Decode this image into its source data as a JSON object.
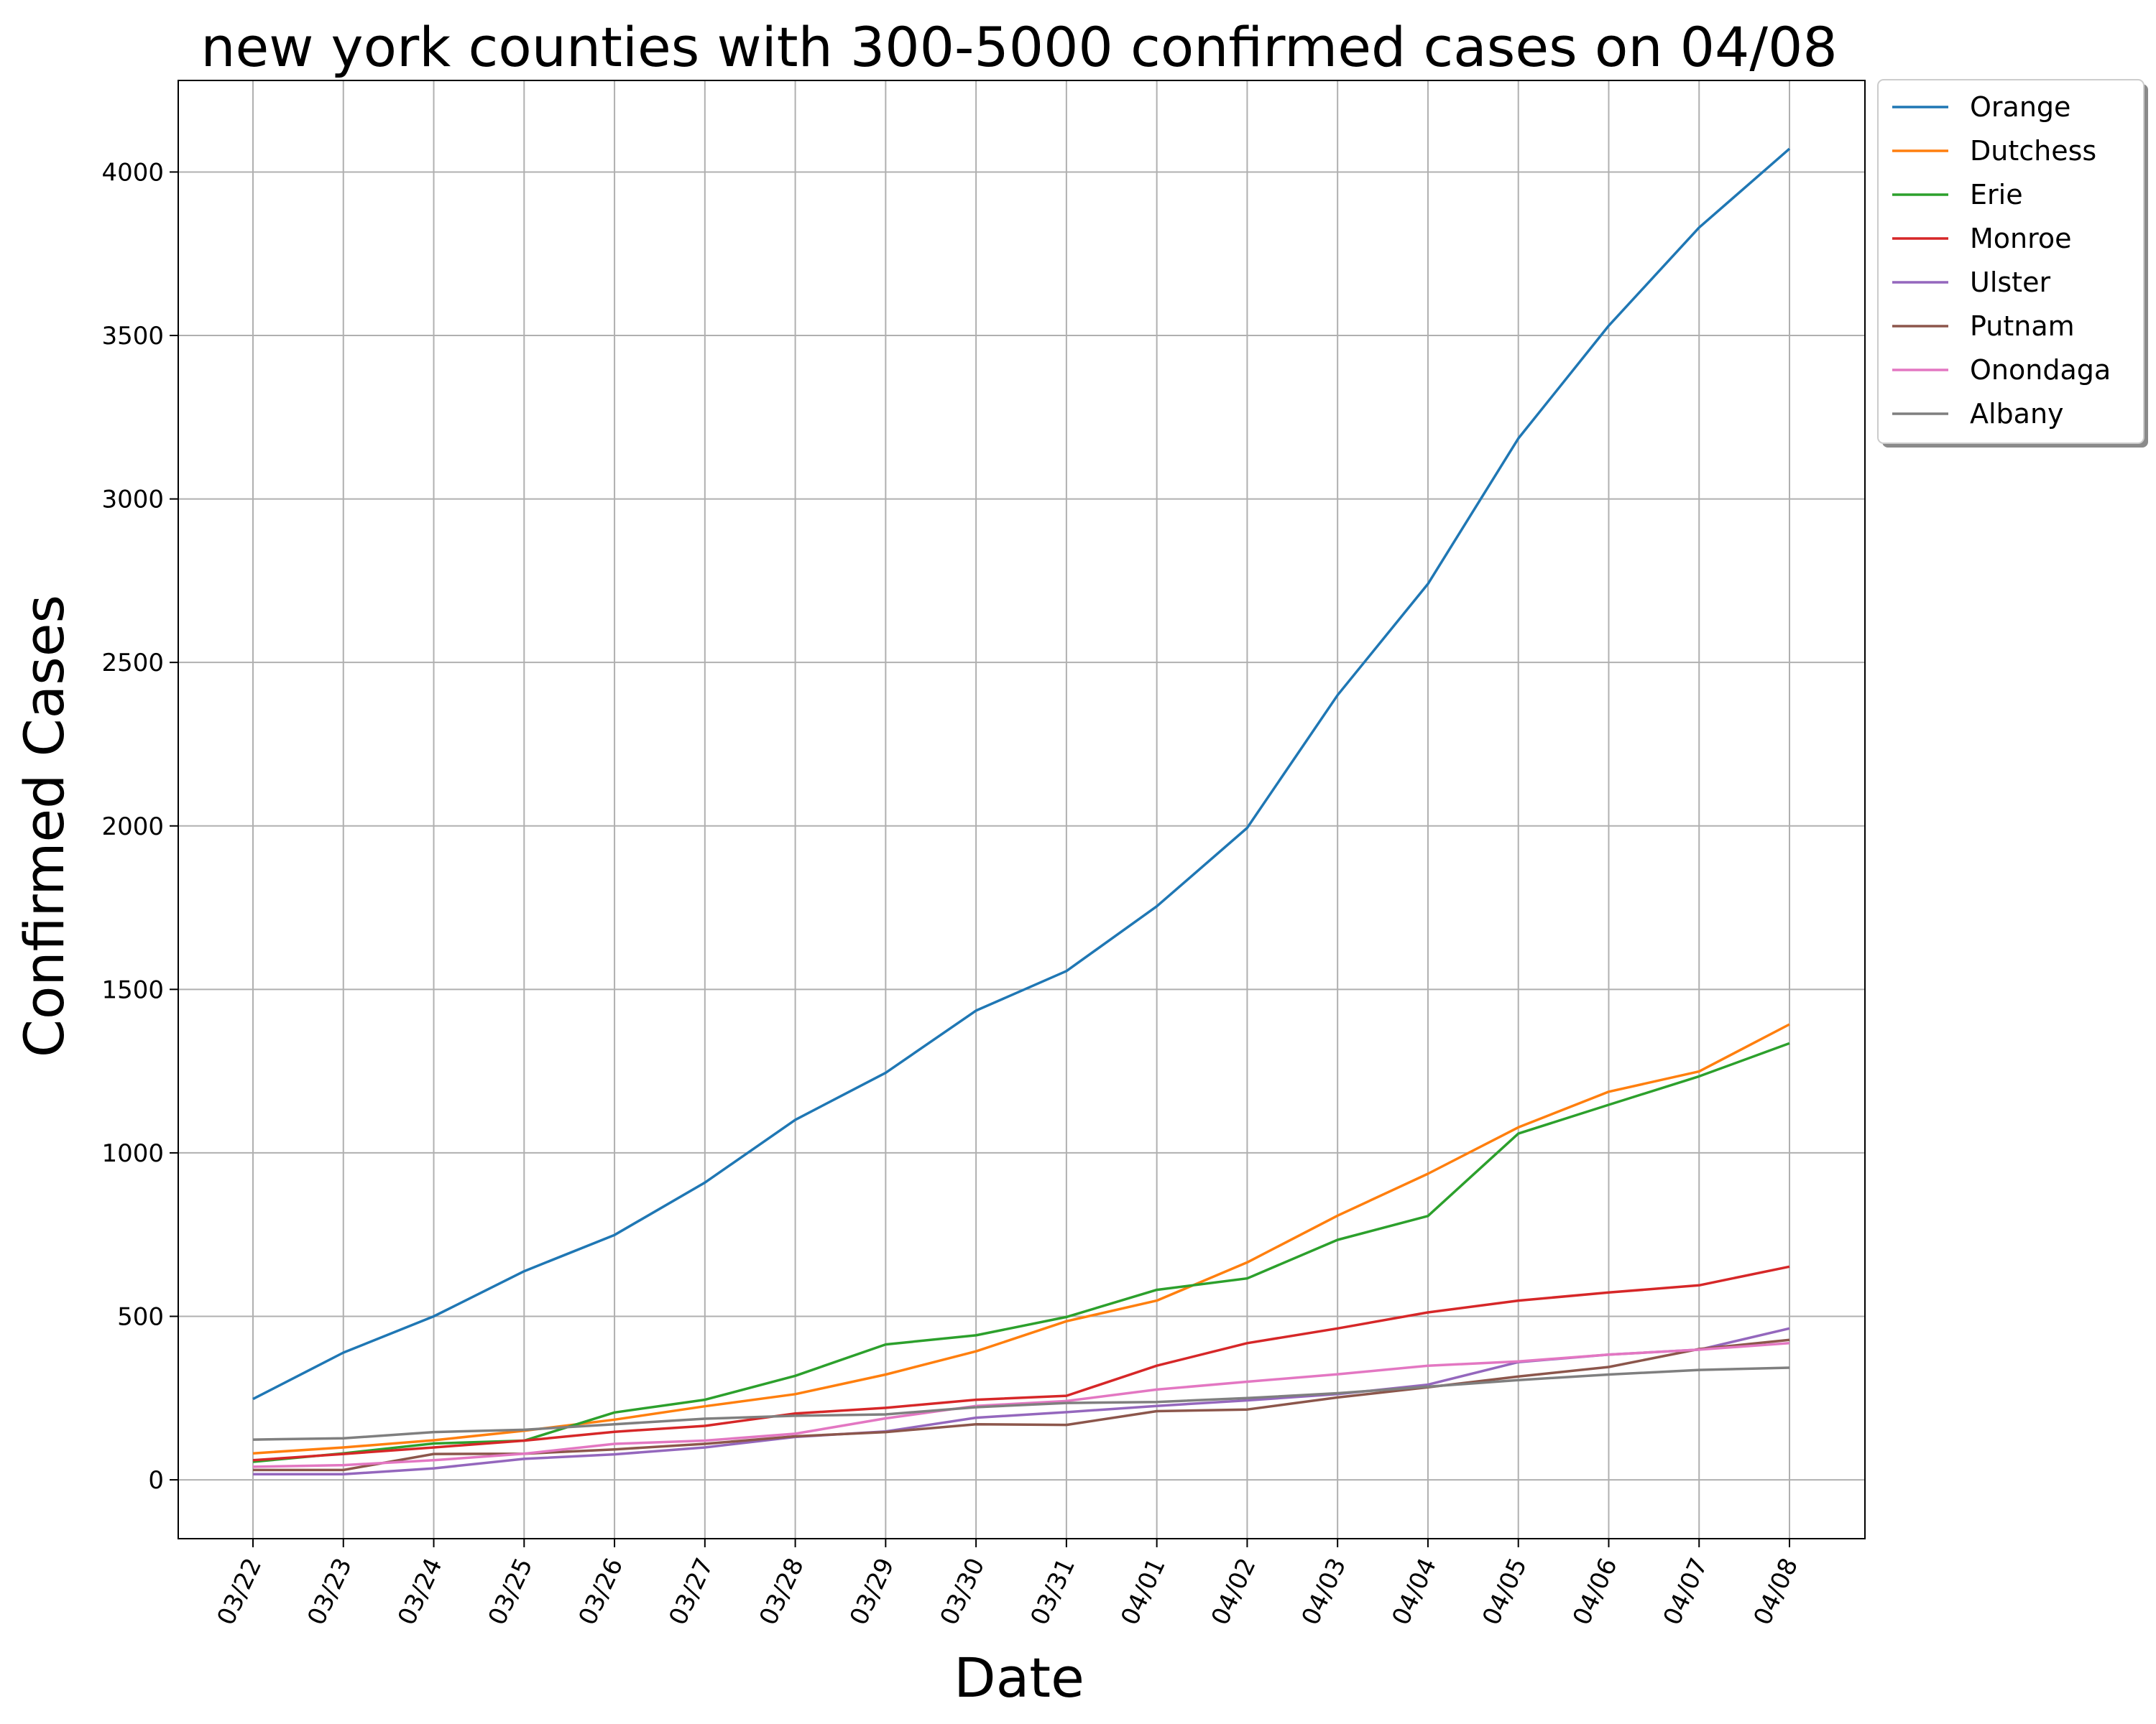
{
  "chart_data": {
    "type": "line",
    "title": "new york counties with 300-5000 confirmed cases on 04/08",
    "xlabel": "Date",
    "ylabel": "Confirmed Cases",
    "categories": [
      "03/22",
      "03/23",
      "03/24",
      "03/25",
      "03/26",
      "03/27",
      "03/28",
      "03/29",
      "03/30",
      "03/31",
      "04/01",
      "04/02",
      "04/03",
      "04/04",
      "04/05",
      "04/06",
      "04/07",
      "04/08"
    ],
    "ylim": [
      -180,
      4280
    ],
    "yticks": [
      0,
      500,
      1000,
      1500,
      2000,
      2500,
      3000,
      3500,
      4000
    ],
    "grid": true,
    "legend_position": "outside-top-right",
    "series": [
      {
        "name": "Orange",
        "color": "#1f77b4",
        "values": [
          247,
          389,
          500,
          638,
          749,
          909,
          1101,
          1245,
          1435,
          1556,
          1754,
          1994,
          2400,
          2740,
          3185,
          3530,
          3830,
          4071
        ]
      },
      {
        "name": "Dutchess",
        "color": "#ff7f0e",
        "values": [
          81,
          99,
          121,
          150,
          184,
          225,
          262,
          322,
          393,
          485,
          548,
          665,
          808,
          936,
          1078,
          1187,
          1249,
          1393
        ]
      },
      {
        "name": "Erie",
        "color": "#2ca02c",
        "values": [
          55,
          81,
          111,
          120,
          206,
          245,
          318,
          414,
          442,
          498,
          581,
          616,
          734,
          807,
          1059,
          1147,
          1234,
          1335
        ]
      },
      {
        "name": "Monroe",
        "color": "#d62728",
        "values": [
          60,
          79,
          99,
          120,
          147,
          165,
          203,
          220,
          245,
          257,
          349,
          418,
          463,
          512,
          548,
          573,
          595,
          652
        ]
      },
      {
        "name": "Ulster",
        "color": "#9467bd",
        "values": [
          17,
          17,
          35,
          64,
          78,
          99,
          131,
          148,
          190,
          207,
          226,
          243,
          262,
          291,
          360,
          383,
          398,
          463
        ]
      },
      {
        "name": "Putnam",
        "color": "#8c564b",
        "values": [
          30,
          30,
          79,
          80,
          93,
          110,
          133,
          146,
          170,
          168,
          210,
          215,
          252,
          283,
          316,
          345,
          400,
          428
        ]
      },
      {
        "name": "Onondaga",
        "color": "#e377c2",
        "values": [
          40,
          45,
          60,
          80,
          110,
          120,
          141,
          188,
          226,
          241,
          276,
          300,
          323,
          349,
          362,
          383,
          398,
          418
        ]
      },
      {
        "name": "Albany",
        "color": "#7f7f7f",
        "values": [
          123,
          127,
          146,
          153,
          170,
          187,
          196,
          200,
          222,
          235,
          238,
          250,
          265,
          285,
          305,
          322,
          336,
          343
        ]
      }
    ]
  }
}
